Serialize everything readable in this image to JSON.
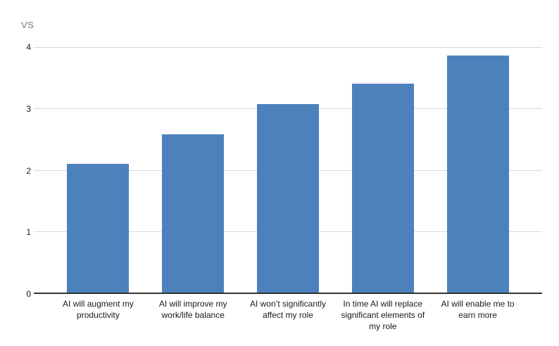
{
  "chart": {
    "title": "VS",
    "colors": {
      "bar": "#4d81bc",
      "gridline": "#d9d9d9",
      "axis_line": "#333333",
      "title_text": "#757575",
      "label_text": "#1a1a1a",
      "background": "#ffffff"
    }
  },
  "chart_data": {
    "type": "bar",
    "title": "VS",
    "categories": [
      "AI will augment my productivity",
      "AI will improve my work/life balance",
      "AI won’t significantly affect my role",
      "In time AI will replace significant elements of my role",
      "AI will enable me to earn more"
    ],
    "values": [
      2.1,
      2.58,
      3.07,
      3.4,
      3.86
    ],
    "xlabel": "",
    "ylabel": "",
    "ylim": [
      0,
      4
    ],
    "yticks": [
      0,
      1,
      2,
      3,
      4
    ],
    "grid": true,
    "legend": false,
    "legend_position": "none"
  }
}
